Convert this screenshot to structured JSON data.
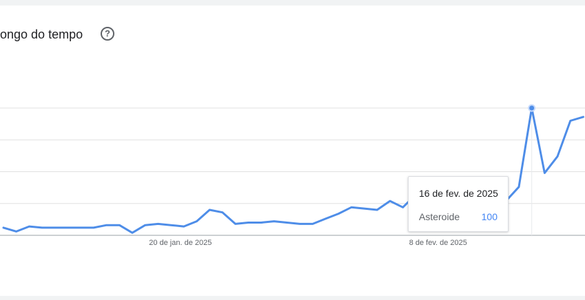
{
  "header": {
    "title": "ongo do tempo",
    "help_icon": "?"
  },
  "tooltip": {
    "date": "16 de fev. de 2025",
    "term": "Asteroide",
    "value": "100"
  },
  "colors": {
    "line": "#4e8de8",
    "grid": "#e0e0e0",
    "axis": "#9aa0a6"
  },
  "chart_data": {
    "type": "line",
    "x_tick_labels": [
      "20 de jan. de 2025",
      "8 de fev. de 2025"
    ],
    "series": [
      {
        "name": "Asteroide",
        "values": [
          6,
          3,
          7,
          6,
          6,
          6,
          6,
          6,
          8,
          8,
          2,
          8,
          9,
          8,
          7,
          11,
          20,
          18,
          9,
          10,
          10,
          11,
          10,
          9,
          9,
          13,
          17,
          22,
          21,
          20,
          27,
          22,
          32,
          29,
          36,
          41,
          38,
          34,
          33,
          27,
          38,
          100,
          49,
          62,
          90,
          93
        ]
      }
    ],
    "ylim": [
      0,
      100
    ],
    "highlight_index": 41,
    "grid": true
  }
}
